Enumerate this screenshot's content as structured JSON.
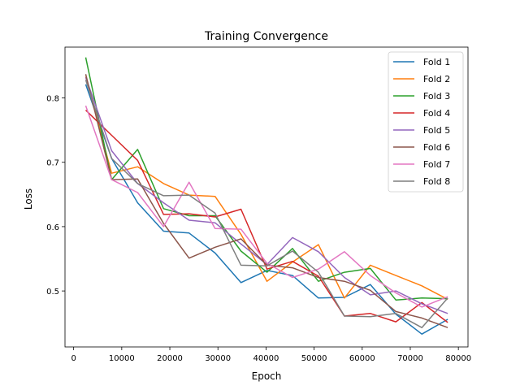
{
  "chart_data": {
    "type": "line",
    "title": "Training Convergence",
    "xlabel": "Epoch",
    "ylabel": "Loss",
    "xlim": [
      -1800,
      82000
    ],
    "ylim": [
      0.413,
      0.879
    ],
    "xticks": [
      {
        "value": 0,
        "label": "0"
      },
      {
        "value": 10000,
        "label": "10000"
      },
      {
        "value": 20000,
        "label": "20000"
      },
      {
        "value": 30000,
        "label": "30000"
      },
      {
        "value": 40000,
        "label": "40000"
      },
      {
        "value": 50000,
        "label": "50000"
      },
      {
        "value": 60000,
        "label": "60000"
      },
      {
        "value": 70000,
        "label": "70000"
      },
      {
        "value": 80000,
        "label": "80000"
      }
    ],
    "yticks": [
      {
        "value": 0.5,
        "label": "0.5"
      },
      {
        "value": 0.6,
        "label": "0.6"
      },
      {
        "value": 0.7,
        "label": "0.7"
      },
      {
        "value": 0.8,
        "label": "0.8"
      }
    ],
    "grid": false,
    "legend_position": "top-right",
    "x": [
      2500,
      7900,
      13300,
      18700,
      24000,
      29400,
      34800,
      40200,
      45500,
      50900,
      56300,
      61700,
      67000,
      72400,
      77800
    ],
    "series": [
      {
        "name": "Fold 1",
        "color": "#1f77b4",
        "values": [
          0.821,
          0.706,
          0.637,
          0.593,
          0.59,
          0.559,
          0.513,
          0.532,
          0.524,
          0.489,
          0.49,
          0.51,
          0.464,
          0.433,
          0.456
        ]
      },
      {
        "name": "Fold 2",
        "color": "#ff7f0e",
        "values": [
          0.833,
          0.683,
          0.693,
          0.667,
          0.649,
          0.647,
          0.588,
          0.515,
          0.545,
          0.572,
          0.489,
          0.54,
          0.524,
          0.508,
          0.487
        ]
      },
      {
        "name": "Fold 3",
        "color": "#2ca02c",
        "values": [
          0.863,
          0.673,
          0.72,
          0.628,
          0.617,
          0.617,
          0.562,
          0.529,
          0.566,
          0.515,
          0.529,
          0.535,
          0.486,
          0.489,
          0.488
        ]
      },
      {
        "name": "Fold 4",
        "color": "#d62728",
        "values": [
          0.781,
          0.742,
          0.703,
          0.619,
          0.62,
          0.615,
          0.627,
          0.534,
          0.546,
          0.523,
          0.461,
          0.465,
          0.452,
          0.482,
          0.451
        ]
      },
      {
        "name": "Fold 5",
        "color": "#9467bd",
        "values": [
          0.832,
          0.718,
          0.667,
          0.637,
          0.61,
          0.606,
          0.573,
          0.541,
          0.583,
          0.561,
          0.521,
          0.494,
          0.5,
          0.48,
          0.465
        ]
      },
      {
        "name": "Fold 6",
        "color": "#8c564b",
        "values": [
          0.837,
          0.673,
          0.674,
          0.605,
          0.551,
          0.568,
          0.581,
          0.54,
          0.536,
          0.521,
          0.515,
          0.501,
          0.468,
          0.458,
          0.443
        ]
      },
      {
        "name": "Fold 7",
        "color": "#e377c2",
        "values": [
          0.788,
          0.673,
          0.653,
          0.6,
          0.669,
          0.597,
          0.596,
          0.543,
          0.521,
          0.534,
          0.561,
          0.524,
          0.497,
          0.475,
          0.491
        ]
      },
      {
        "name": "Fold 8",
        "color": "#7f7f7f",
        "values": [
          0.828,
          0.706,
          0.667,
          0.648,
          0.649,
          0.621,
          0.54,
          0.539,
          0.562,
          0.529,
          0.461,
          0.46,
          0.465,
          0.443,
          0.489
        ]
      }
    ]
  }
}
